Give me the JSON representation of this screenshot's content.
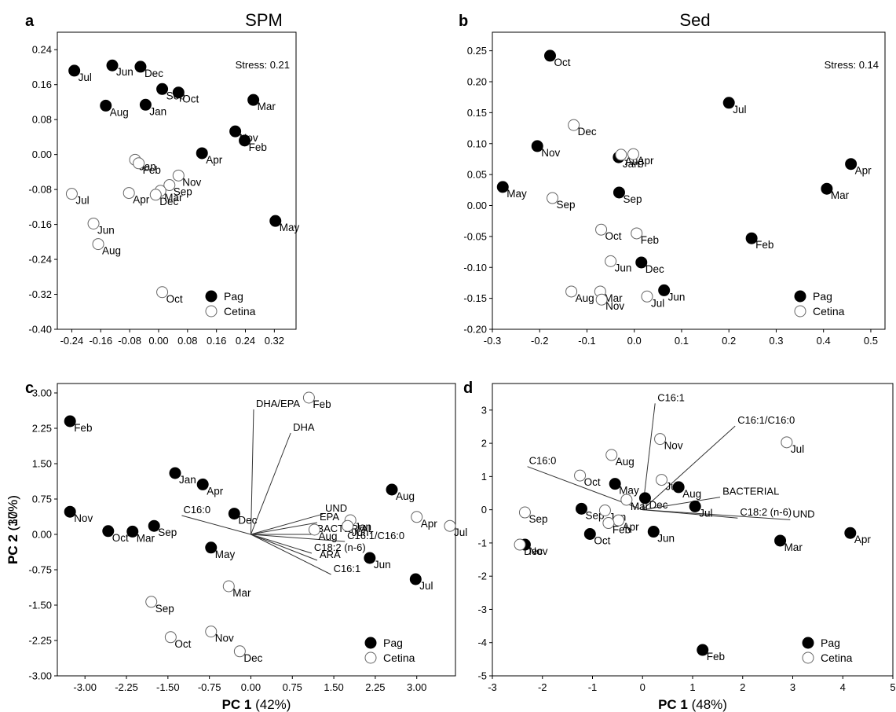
{
  "chart_data": [
    {
      "panel": "a",
      "type": "scatter",
      "title": "SPM",
      "annotation": "Stress: 0.21",
      "xlabel": "",
      "ylabel": "",
      "xlim": [
        -0.28,
        0.38
      ],
      "ylim": [
        -0.4,
        0.28
      ],
      "xticks": [
        "-0.24",
        "-0.16",
        "-0.08",
        "0.00",
        "0.08",
        "0.16",
        "0.24",
        "0.32"
      ],
      "xtick_values": [
        -0.24,
        -0.16,
        -0.08,
        0.0,
        0.08,
        0.16,
        0.24,
        0.32
      ],
      "yticks": [
        "0.24",
        "0.16",
        "0.08",
        "0.00",
        "-0.08",
        "-0.16",
        "-0.24",
        "-0.32",
        "-0.40"
      ],
      "ytick_values": [
        0.24,
        0.16,
        0.08,
        0.0,
        -0.08,
        -0.16,
        -0.24,
        -0.32,
        -0.4
      ],
      "legend": [
        {
          "name": "Pag",
          "filled": true
        },
        {
          "name": "Cetina",
          "filled": false
        }
      ],
      "legend_position": "bottom-right",
      "series": [
        {
          "name": "Pag",
          "filled": true,
          "points": [
            {
              "label": "Jul",
              "x": -0.233,
              "y": 0.192
            },
            {
              "label": "Jun",
              "x": -0.128,
              "y": 0.204
            },
            {
              "label": "Dec",
              "x": -0.05,
              "y": 0.201
            },
            {
              "label": "Sep",
              "x": 0.01,
              "y": 0.15
            },
            {
              "label": "Oct",
              "x": 0.055,
              "y": 0.142
            },
            {
              "label": "Aug",
              "x": -0.146,
              "y": 0.112
            },
            {
              "label": "Jan",
              "x": -0.036,
              "y": 0.114
            },
            {
              "label": "Mar",
              "x": 0.262,
              "y": 0.125
            },
            {
              "label": "Nov",
              "x": 0.212,
              "y": 0.053
            },
            {
              "label": "Feb",
              "x": 0.238,
              "y": 0.032
            },
            {
              "label": "Apr",
              "x": 0.12,
              "y": 0.003
            },
            {
              "label": "May",
              "x": 0.323,
              "y": -0.152
            }
          ]
        },
        {
          "name": "Cetina",
          "filled": false,
          "points": [
            {
              "label": "Jan",
              "x": -0.065,
              "y": -0.012
            },
            {
              "label": "Feb",
              "x": -0.055,
              "y": -0.02
            },
            {
              "label": "Nov",
              "x": 0.055,
              "y": -0.048
            },
            {
              "label": "Sep",
              "x": 0.03,
              "y": -0.07
            },
            {
              "label": "Mar",
              "x": 0.005,
              "y": -0.083
            },
            {
              "label": "Dec",
              "x": -0.008,
              "y": -0.092
            },
            {
              "label": "Apr",
              "x": -0.082,
              "y": -0.088
            },
            {
              "label": "Jul",
              "x": -0.24,
              "y": -0.09
            },
            {
              "label": "Jun",
              "x": -0.18,
              "y": -0.158
            },
            {
              "label": "Aug",
              "x": -0.167,
              "y": -0.205
            },
            {
              "label": "Oct",
              "x": 0.01,
              "y": -0.315
            }
          ]
        }
      ]
    },
    {
      "panel": "b",
      "type": "scatter",
      "title": "Sed",
      "annotation": "Stress: 0.14",
      "xlabel": "",
      "ylabel": "",
      "xlim": [
        -0.3,
        0.53
      ],
      "ylim": [
        -0.2,
        0.28
      ],
      "xticks": [
        "-0.3",
        "-0.2",
        "-0.1",
        "0.0",
        "0.1",
        "0.2",
        "0.3",
        "0.4",
        "0.5"
      ],
      "xtick_values": [
        -0.3,
        -0.2,
        -0.1,
        0.0,
        0.1,
        0.2,
        0.3,
        0.4,
        0.5
      ],
      "yticks": [
        "0.25",
        "0.20",
        "0.15",
        "0.10",
        "0.05",
        "0.00",
        "-0.05",
        "-0.10",
        "-0.15",
        "-0.20"
      ],
      "ytick_values": [
        0.25,
        0.2,
        0.15,
        0.1,
        0.05,
        0.0,
        -0.05,
        -0.1,
        -0.15,
        -0.2
      ],
      "legend": [
        {
          "name": "Pag",
          "filled": true
        },
        {
          "name": "Cetina",
          "filled": false
        }
      ],
      "legend_position": "bottom-right",
      "series": [
        {
          "name": "Pag",
          "filled": true,
          "points": [
            {
              "label": "Oct",
              "x": -0.178,
              "y": 0.242
            },
            {
              "label": "Jul",
              "x": 0.2,
              "y": 0.166
            },
            {
              "label": "Nov",
              "x": -0.205,
              "y": 0.096
            },
            {
              "label": "Jan",
              "x": -0.033,
              "y": 0.078
            },
            {
              "label": "Apr",
              "x": 0.458,
              "y": 0.067
            },
            {
              "label": "May",
              "x": -0.278,
              "y": 0.03
            },
            {
              "label": "Mar",
              "x": 0.407,
              "y": 0.027
            },
            {
              "label": "Sep",
              "x": -0.032,
              "y": 0.021
            },
            {
              "label": "Feb",
              "x": 0.248,
              "y": -0.053
            },
            {
              "label": "Dec",
              "x": 0.015,
              "y": -0.092
            },
            {
              "label": "Jun",
              "x": 0.063,
              "y": -0.137
            }
          ]
        },
        {
          "name": "Cetina",
          "filled": false,
          "points": [
            {
              "label": "Dec",
              "x": -0.128,
              "y": 0.13
            },
            {
              "label": "Aug",
              "x": -0.028,
              "y": 0.082
            },
            {
              "label": "Apr",
              "x": -0.002,
              "y": 0.083
            },
            {
              "label": "Sep",
              "x": -0.173,
              "y": 0.012
            },
            {
              "label": "Oct",
              "x": -0.07,
              "y": -0.039
            },
            {
              "label": "Feb",
              "x": 0.005,
              "y": -0.045
            },
            {
              "label": "Jun",
              "x": -0.05,
              "y": -0.09
            },
            {
              "label": "Aug",
              "x": -0.133,
              "y": -0.139
            },
            {
              "label": "Mar",
              "x": -0.072,
              "y": -0.139
            },
            {
              "label": "Nov",
              "x": -0.069,
              "y": -0.152
            },
            {
              "label": "Jul",
              "x": 0.027,
              "y": -0.147
            }
          ]
        }
      ]
    },
    {
      "panel": "c",
      "type": "scatter",
      "title": "",
      "xlabel_bold": "PC 1",
      "xlabel_rest": " (42%)",
      "ylabel_bold": "PC 2",
      "ylabel_rest": " (17%)",
      "xlim": [
        -3.5,
        3.7
      ],
      "ylim": [
        -3.0,
        3.2
      ],
      "xticks": [
        "-3.00",
        "-2.25",
        "-1.50",
        "-0.75",
        "0.00",
        "0.75",
        "1.50",
        "2.25",
        "3.00"
      ],
      "xtick_values": [
        -3.0,
        -2.25,
        -1.5,
        -0.75,
        0.0,
        0.75,
        1.5,
        2.25,
        3.0
      ],
      "yticks": [
        "3.00",
        "2.25",
        "1.50",
        "0.75",
        "0.00",
        "-0.75",
        "-1.50",
        "-2.25",
        "-3.00"
      ],
      "ytick_values": [
        3.0,
        2.25,
        1.5,
        0.75,
        0.0,
        -0.75,
        -1.5,
        -2.25,
        -3.0
      ],
      "legend": [
        {
          "name": "Pag",
          "filled": true
        },
        {
          "name": "Cetina",
          "filled": false
        }
      ],
      "legend_position": "bottom-right",
      "vector_origin": [
        0.0,
        0.0
      ],
      "vectors": [
        {
          "label": "DHA/EPA",
          "x": 0.05,
          "y": 2.65
        },
        {
          "label": "DHA",
          "x": 0.72,
          "y": 2.15
        },
        {
          "label": "C16:0",
          "x": -1.25,
          "y": 0.4
        },
        {
          "label": "UND",
          "x": 1.3,
          "y": 0.43
        },
        {
          "label": "EPA",
          "x": 1.2,
          "y": 0.25
        },
        {
          "label": "BACTERIAL",
          "x": 1.15,
          "y": 0.0
        },
        {
          "label": "C16:1/C16:0",
          "x": 1.7,
          "y": -0.15
        },
        {
          "label": "C18:2 (n-6)",
          "x": 1.1,
          "y": -0.4
        },
        {
          "label": "ARA",
          "x": 1.2,
          "y": -0.55
        },
        {
          "label": "C16:1",
          "x": 1.45,
          "y": -0.85
        }
      ],
      "series": [
        {
          "name": "Pag",
          "filled": true,
          "points": [
            {
              "label": "Feb",
              "x": -3.27,
              "y": 2.4
            },
            {
              "label": "Jan",
              "x": -1.37,
              "y": 1.3
            },
            {
              "label": "Apr",
              "x": -0.87,
              "y": 1.06
            },
            {
              "label": "Aug",
              "x": 2.55,
              "y": 0.95
            },
            {
              "label": "Nov",
              "x": -3.27,
              "y": 0.48
            },
            {
              "label": "Dec",
              "x": -0.3,
              "y": 0.44
            },
            {
              "label": "Sep",
              "x": -1.75,
              "y": 0.18
            },
            {
              "label": "Oct",
              "x": -2.58,
              "y": 0.07
            },
            {
              "label": "Mar",
              "x": -2.14,
              "y": 0.06
            },
            {
              "label": "May",
              "x": -0.72,
              "y": -0.28
            },
            {
              "label": "Jun",
              "x": 2.15,
              "y": -0.5
            },
            {
              "label": "Jul",
              "x": 2.98,
              "y": -0.95
            }
          ]
        },
        {
          "name": "Cetina",
          "filled": false,
          "points": [
            {
              "label": "Feb",
              "x": 1.05,
              "y": 2.9
            },
            {
              "label": "Jan",
              "x": 1.8,
              "y": 0.3
            },
            {
              "label": "Jun",
              "x": 1.75,
              "y": 0.18
            },
            {
              "label": "Aug",
              "x": 1.15,
              "y": 0.1
            },
            {
              "label": "Apr",
              "x": 3.0,
              "y": 0.37
            },
            {
              "label": "Jul",
              "x": 3.6,
              "y": 0.18
            },
            {
              "label": "Mar",
              "x": -0.4,
              "y": -1.1
            },
            {
              "label": "Sep",
              "x": -1.8,
              "y": -1.43
            },
            {
              "label": "Oct",
              "x": -1.45,
              "y": -2.18
            },
            {
              "label": "Nov",
              "x": -0.72,
              "y": -2.06
            },
            {
              "label": "Dec",
              "x": -0.2,
              "y": -2.48
            }
          ]
        }
      ]
    },
    {
      "panel": "d",
      "type": "scatter",
      "title": "",
      "xlabel_bold": "PC 1",
      "xlabel_rest": " (48%)",
      "ylabel_bold": "PC 2",
      "ylabel_rest": " (30%)",
      "xlim": [
        -3.0,
        5.0
      ],
      "ylim": [
        -5.0,
        3.8
      ],
      "xticks": [
        "-3",
        "-2",
        "-1",
        "0",
        "1",
        "2",
        "3",
        "4",
        "5"
      ],
      "xtick_values": [
        -3,
        -2,
        -1,
        0,
        1,
        2,
        3,
        4,
        5
      ],
      "yticks": [
        "3",
        "2",
        "1",
        "0",
        "-1",
        "-2",
        "-3",
        "-4",
        "-5"
      ],
      "ytick_values": [
        3,
        2,
        1,
        0,
        -1,
        -2,
        -3,
        -4,
        -5
      ],
      "legend": [
        {
          "name": "Pag",
          "filled": true
        },
        {
          "name": "Cetina",
          "filled": false
        }
      ],
      "legend_position": "bottom-right",
      "vector_origin": [
        0.0,
        0.0
      ],
      "vectors": [
        {
          "label": "C16:1",
          "x": 0.25,
          "y": 3.2
        },
        {
          "label": "C16:1/C16:0",
          "x": 1.85,
          "y": 2.52
        },
        {
          "label": "C16:0",
          "x": -2.3,
          "y": 1.3
        },
        {
          "label": "BACTERIAL",
          "x": 1.55,
          "y": 0.38
        },
        {
          "label": "C18:2 (n-6)",
          "x": 1.9,
          "y": -0.25
        },
        {
          "label": "UND",
          "x": 2.95,
          "y": -0.3
        }
      ],
      "series": [
        {
          "name": "Pag",
          "filled": true,
          "points": [
            {
              "label": "May",
              "x": -0.55,
              "y": 0.78
            },
            {
              "label": "Dec",
              "x": 0.05,
              "y": 0.35
            },
            {
              "label": "Aug",
              "x": 0.72,
              "y": 0.68
            },
            {
              "label": "Jul",
              "x": 1.05,
              "y": 0.1
            },
            {
              "label": "Sep",
              "x": -1.22,
              "y": 0.03
            },
            {
              "label": "Oct",
              "x": -1.05,
              "y": -0.73
            },
            {
              "label": "Jun",
              "x": 0.22,
              "y": -0.66
            },
            {
              "label": "Nov",
              "x": -2.35,
              "y": -1.05
            },
            {
              "label": "Mar",
              "x": 2.75,
              "y": -0.93
            },
            {
              "label": "Apr",
              "x": 4.15,
              "y": -0.7
            },
            {
              "label": "Feb",
              "x": 1.2,
              "y": -4.22
            }
          ]
        },
        {
          "name": "Cetina",
          "filled": false,
          "points": [
            {
              "label": "Aug",
              "x": -0.62,
              "y": 1.65
            },
            {
              "label": "Nov",
              "x": 0.35,
              "y": 2.13
            },
            {
              "label": "Jul",
              "x": 2.88,
              "y": 2.03
            },
            {
              "label": "Oct",
              "x": -1.25,
              "y": 1.03
            },
            {
              "label": "Jun",
              "x": 0.38,
              "y": 0.9
            },
            {
              "label": "Mar",
              "x": -0.32,
              "y": 0.3
            },
            {
              "label": "Jan",
              "x": -0.75,
              "y": -0.02
            },
            {
              "label": "Apr",
              "x": -0.48,
              "y": -0.32
            },
            {
              "label": "Feb",
              "x": -0.68,
              "y": -0.4
            },
            {
              "label": "Sep",
              "x": -2.35,
              "y": -0.08
            },
            {
              "label": "Dec",
              "x": -2.45,
              "y": -1.05
            }
          ]
        }
      ]
    }
  ]
}
